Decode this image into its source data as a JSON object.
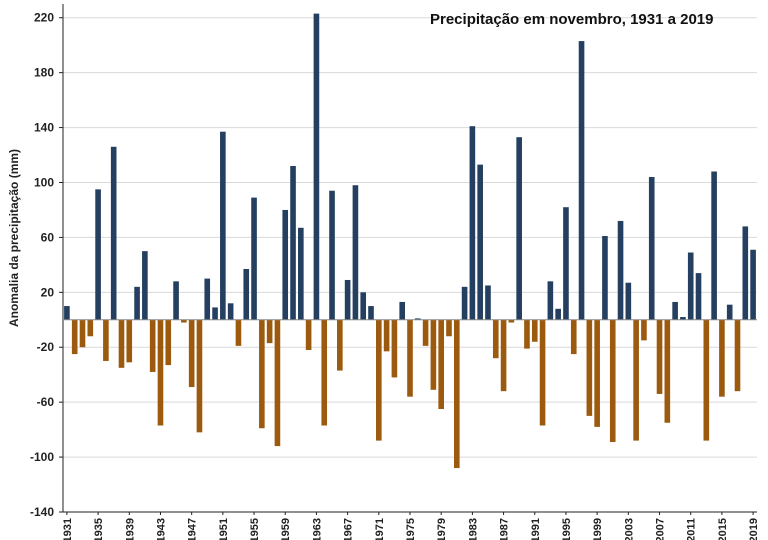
{
  "chart_data": {
    "type": "bar",
    "title": "Precipitação em novembro, 1931 a 2019",
    "ylabel": "Anomalia da precipitação (mm)",
    "xlabel": "",
    "ylim": [
      -140,
      230
    ],
    "yticks": [
      220,
      180,
      140,
      100,
      60,
      20,
      -20,
      -60,
      -100,
      -140
    ],
    "grid": true,
    "colors": {
      "positive": "#243F60",
      "negative": "#9C5A0E",
      "axis": "#222222",
      "grid": "#d9d9d9"
    },
    "x_tick_labels": [
      "1931",
      "1935",
      "1939",
      "1943",
      "1947",
      "1951",
      "1955",
      "1959",
      "1963",
      "1967",
      "1971",
      "1975",
      "1979",
      "1983",
      "1987",
      "1991",
      "1995",
      "1999",
      "2003",
      "2007",
      "2011",
      "2015",
      "2019"
    ],
    "categories": [
      1931,
      1932,
      1933,
      1934,
      1935,
      1936,
      1937,
      1938,
      1939,
      1940,
      1941,
      1942,
      1943,
      1944,
      1945,
      1946,
      1947,
      1948,
      1949,
      1950,
      1951,
      1952,
      1953,
      1954,
      1955,
      1956,
      1957,
      1958,
      1959,
      1960,
      1961,
      1962,
      1963,
      1964,
      1965,
      1966,
      1967,
      1968,
      1969,
      1970,
      1971,
      1972,
      1973,
      1974,
      1975,
      1976,
      1977,
      1978,
      1979,
      1980,
      1981,
      1982,
      1983,
      1984,
      1985,
      1986,
      1987,
      1988,
      1989,
      1990,
      1991,
      1992,
      1993,
      1994,
      1995,
      1996,
      1997,
      1998,
      1999,
      2000,
      2001,
      2002,
      2003,
      2004,
      2005,
      2006,
      2007,
      2008,
      2009,
      2010,
      2011,
      2012,
      2013,
      2014,
      2015,
      2016,
      2017,
      2018,
      2019
    ],
    "values": [
      10,
      -25,
      -20,
      -12,
      95,
      -30,
      126,
      -35,
      -31,
      24,
      50,
      -38,
      -77,
      -33,
      28,
      -2,
      -49,
      -82,
      30,
      9,
      137,
      12,
      -19,
      37,
      89,
      -79,
      -17,
      -92,
      80,
      112,
      67,
      -22,
      223,
      -77,
      94,
      -37,
      29,
      98,
      20,
      10,
      -88,
      -23,
      -42,
      13,
      -56,
      1,
      -19,
      -51,
      -65,
      -12,
      -108,
      24,
      141,
      113,
      25,
      -28,
      -52,
      -2,
      133,
      -21,
      -16,
      -77,
      28,
      8,
      82,
      -25,
      203,
      -70,
      -78,
      61,
      -89,
      72,
      27,
      -88,
      -15,
      104,
      -54,
      -75,
      13,
      2,
      49,
      34,
      -88,
      108,
      -56,
      11,
      -52,
      68,
      51
    ]
  }
}
